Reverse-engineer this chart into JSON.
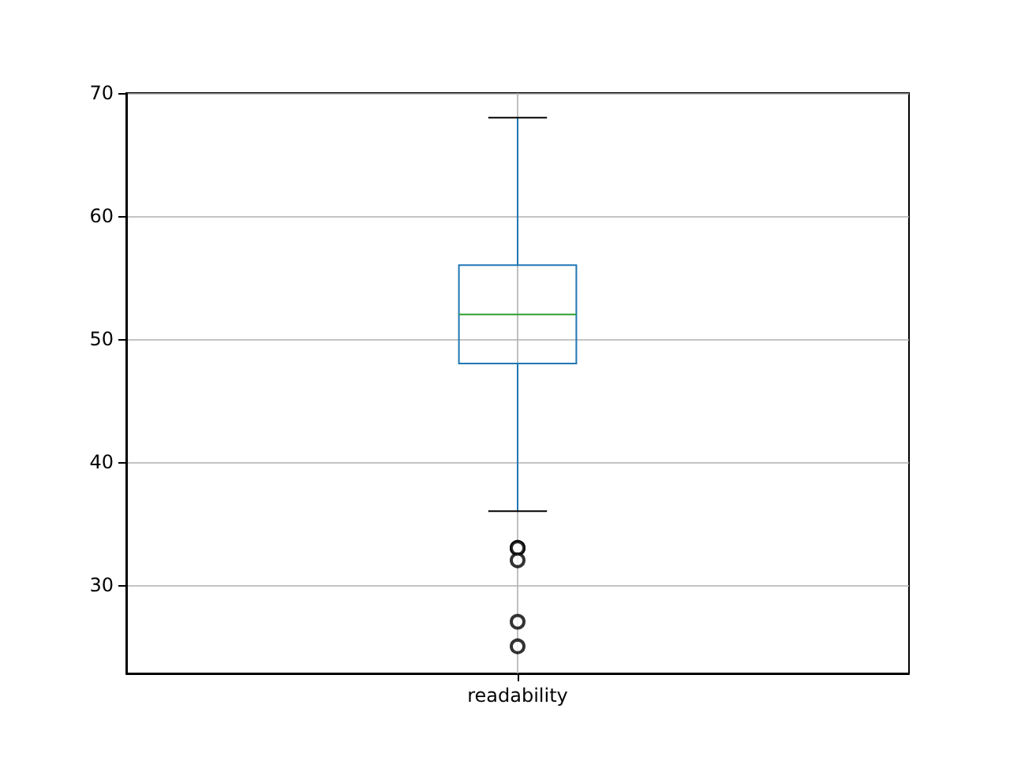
{
  "chart_data": {
    "type": "box",
    "categories": [
      "readability"
    ],
    "color": "#1f77b4",
    "boxes": [
      {
        "low": 36,
        "q1": 48,
        "median": 52,
        "q3": 56,
        "high": 68,
        "outliers": [
          33,
          33,
          32,
          27,
          25
        ]
      }
    ],
    "ylim": [
      22.8,
      70
    ],
    "yticks": [
      30,
      40,
      50,
      60,
      70
    ],
    "grid": true,
    "marker": "circle"
  }
}
